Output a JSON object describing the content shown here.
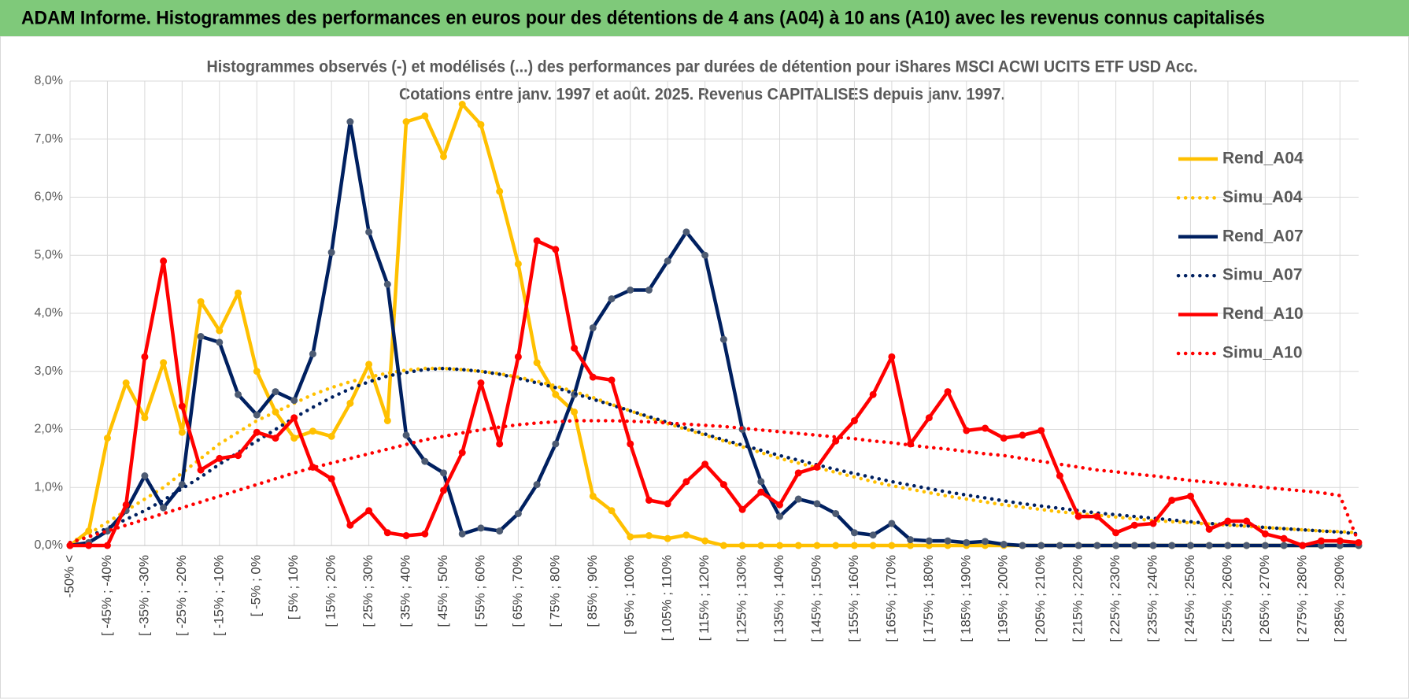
{
  "header": {
    "title": "ADAM Informe. Histogrammes des performances en euros pour des détentions de 4 ans (A04) à 10 ans (A10) avec les revenus connus capitalisés"
  },
  "chart_data": {
    "type": "line",
    "title": "Histogrammes observés (-) et modélisés (...) des performances par durées de détention pour iShares MSCI ACWI UCITS ETF USD Acc.",
    "subtitle": "Cotations entre janv. 1997 et août. 2025. Revenus CAPITALISES depuis janv. 1997.",
    "categories": [
      "-50% <",
      null,
      "[ -45% ; -40%",
      null,
      "[ -35% ; -30%",
      null,
      "[ -25% ; -20%",
      null,
      "[ -15% ; -10%",
      null,
      "[ -5% ; 0%",
      null,
      "[ 5% ; 10%",
      null,
      "[ 15% ; 20%",
      null,
      "[ 25% ; 30%",
      null,
      "[ 35% ; 40%",
      null,
      "[ 45% ; 50%",
      null,
      "[ 55% ; 60%",
      null,
      "[ 65% ; 70%",
      null,
      "[ 75% ; 80%",
      null,
      "[ 85% ; 90%",
      null,
      "[ 95% ; 100%",
      null,
      "[ 105% ; 110%",
      null,
      "[ 115% ; 120%",
      null,
      "[ 125% ; 130%",
      null,
      "[ 135% ; 140%",
      null,
      "[ 145% ; 150%",
      null,
      "[ 155% ; 160%",
      null,
      "[ 165% ; 170%",
      null,
      "[ 175% ; 180%",
      null,
      "[ 185% ; 190%",
      null,
      "[ 195% ; 200%",
      null,
      "[ 205% ; 210%",
      null,
      "[ 215% ; 220%",
      null,
      "[ 225% ; 230%",
      null,
      "[ 235% ; 240%",
      null,
      "[ 245% ; 250%",
      null,
      "[ 255% ; 260%",
      null,
      "[ 265% ; 270%",
      null,
      "[ 275% ; 280%",
      null,
      "[ 285% ; 290%",
      null
    ],
    "series": [
      {
        "name": "Rend_A04",
        "color": "#ffc000",
        "style": "solid",
        "markers": true,
        "values": [
          0,
          0.25,
          1.85,
          2.8,
          2.2,
          3.15,
          1.95,
          4.2,
          3.7,
          4.35,
          3.0,
          2.3,
          1.85,
          1.97,
          1.88,
          2.45,
          3.12,
          2.15,
          7.3,
          7.4,
          6.7,
          7.6,
          7.25,
          6.1,
          4.85,
          3.15,
          2.6,
          2.3,
          0.85,
          0.6,
          0.15,
          0.17,
          0.12,
          0.18,
          0.08,
          0,
          0,
          0,
          0,
          0,
          0,
          0,
          0,
          0,
          0,
          0,
          0,
          0,
          0,
          0,
          0,
          0,
          0,
          0,
          0,
          0,
          0,
          0,
          0,
          0,
          0,
          0,
          0,
          0,
          0,
          0,
          0,
          0,
          0,
          0
        ]
      },
      {
        "name": "Simu_A04",
        "color": "#ffc000",
        "style": "dotted",
        "markers": false,
        "values": [
          0.05,
          0.2,
          0.4,
          0.6,
          0.8,
          1.0,
          1.25,
          1.5,
          1.75,
          1.95,
          2.15,
          2.3,
          2.45,
          2.6,
          2.72,
          2.82,
          2.9,
          2.97,
          3.02,
          3.05,
          3.05,
          3.03,
          3.0,
          2.96,
          2.9,
          2.83,
          2.75,
          2.65,
          2.55,
          2.43,
          2.32,
          2.2,
          2.1,
          2.0,
          1.9,
          1.8,
          1.7,
          1.6,
          1.5,
          1.42,
          1.34,
          1.26,
          1.18,
          1.1,
          1.03,
          0.97,
          0.91,
          0.85,
          0.8,
          0.75,
          0.7,
          0.66,
          0.62,
          0.58,
          0.55,
          0.52,
          0.49,
          0.46,
          0.43,
          0.41,
          0.39,
          0.37,
          0.35,
          0.33,
          0.31,
          0.29,
          0.27,
          0.25,
          0.24,
          0.22
        ]
      },
      {
        "name": "Rend_A07",
        "color": "#002060",
        "style": "solid",
        "markers": true,
        "values": [
          0,
          0.05,
          0.25,
          0.6,
          1.2,
          0.65,
          1.05,
          3.6,
          3.5,
          2.6,
          2.25,
          2.65,
          2.5,
          3.3,
          5.05,
          7.3,
          5.4,
          4.5,
          1.9,
          1.45,
          1.25,
          0.2,
          0.3,
          0.25,
          0.55,
          1.05,
          1.75,
          2.6,
          3.75,
          4.25,
          4.4,
          4.4,
          4.9,
          5.4,
          5.0,
          3.55,
          2.0,
          1.1,
          0.5,
          0.8,
          0.72,
          0.55,
          0.22,
          0.18,
          0.38,
          0.1,
          0.08,
          0.08,
          0.05,
          0.07,
          0.02,
          0,
          0,
          0,
          0,
          0,
          0,
          0,
          0,
          0,
          0,
          0,
          0,
          0,
          0,
          0,
          0,
          0,
          0,
          0
        ]
      },
      {
        "name": "Simu_A07",
        "color": "#002060",
        "style": "dotted",
        "markers": false,
        "values": [
          0.05,
          0.15,
          0.3,
          0.45,
          0.6,
          0.78,
          0.98,
          1.18,
          1.4,
          1.6,
          1.8,
          2.0,
          2.2,
          2.38,
          2.55,
          2.7,
          2.82,
          2.92,
          2.98,
          3.03,
          3.05,
          3.03,
          3.0,
          2.95,
          2.88,
          2.8,
          2.72,
          2.62,
          2.52,
          2.42,
          2.32,
          2.22,
          2.12,
          2.02,
          1.92,
          1.82,
          1.73,
          1.64,
          1.55,
          1.47,
          1.39,
          1.31,
          1.24,
          1.17,
          1.1,
          1.04,
          0.98,
          0.92,
          0.87,
          0.82,
          0.77,
          0.72,
          0.68,
          0.64,
          0.6,
          0.56,
          0.53,
          0.5,
          0.47,
          0.44,
          0.41,
          0.38,
          0.36,
          0.34,
          0.31,
          0.29,
          0.27,
          0.25,
          0.23,
          0.2
        ]
      },
      {
        "name": "Rend_A10",
        "color": "#ff0000",
        "style": "solid",
        "markers": true,
        "values": [
          0,
          0,
          0,
          0.7,
          3.25,
          4.9,
          2.4,
          1.3,
          1.5,
          1.55,
          1.95,
          1.85,
          2.2,
          1.35,
          1.15,
          0.35,
          0.6,
          0.22,
          0.17,
          0.2,
          0.95,
          1.6,
          2.8,
          1.75,
          3.25,
          5.25,
          5.1,
          3.4,
          2.9,
          2.85,
          1.75,
          0.78,
          0.72,
          1.1,
          1.4,
          1.05,
          0.62,
          0.92,
          0.7,
          1.25,
          1.35,
          1.8,
          2.15,
          2.6,
          3.25,
          1.75,
          2.2,
          2.65,
          1.98,
          2.02,
          1.85,
          1.9,
          1.98,
          1.2,
          0.5,
          0.5,
          0.22,
          0.35,
          0.38,
          0.78,
          0.85,
          0.28,
          0.42,
          0.42,
          0.2,
          0.12,
          0,
          0.08,
          0.08,
          0.05
        ]
      },
      {
        "name": "Simu_A10",
        "color": "#ff0000",
        "style": "dotted",
        "markers": false,
        "values": [
          0.05,
          0.15,
          0.25,
          0.35,
          0.45,
          0.55,
          0.65,
          0.75,
          0.85,
          0.95,
          1.05,
          1.15,
          1.25,
          1.34,
          1.42,
          1.5,
          1.58,
          1.66,
          1.74,
          1.82,
          1.88,
          1.94,
          1.99,
          2.04,
          2.08,
          2.11,
          2.13,
          2.15,
          2.15,
          2.15,
          2.14,
          2.13,
          2.11,
          2.09,
          2.07,
          2.05,
          2.02,
          1.99,
          1.96,
          1.93,
          1.9,
          1.87,
          1.84,
          1.8,
          1.77,
          1.73,
          1.69,
          1.66,
          1.62,
          1.58,
          1.55,
          1.5,
          1.45,
          1.4,
          1.35,
          1.3,
          1.27,
          1.23,
          1.2,
          1.16,
          1.12,
          1.09,
          1.06,
          1.03,
          1.0,
          0.97,
          0.94,
          0.91,
          0.86,
          0.05
        ]
      }
    ],
    "ylim": [
      0,
      8
    ],
    "yticks": [
      {
        "value": 0,
        "label": "0,0%"
      },
      {
        "value": 1,
        "label": "1,0%"
      },
      {
        "value": 2,
        "label": "2,0%"
      },
      {
        "value": 3,
        "label": "3,0%"
      },
      {
        "value": 4,
        "label": "4,0%"
      },
      {
        "value": 5,
        "label": "5,0%"
      },
      {
        "value": 6,
        "label": "6,0%"
      },
      {
        "value": 7,
        "label": "7,0%"
      },
      {
        "value": 8,
        "label": "8,0%"
      }
    ],
    "grid": true,
    "legend": "right"
  }
}
